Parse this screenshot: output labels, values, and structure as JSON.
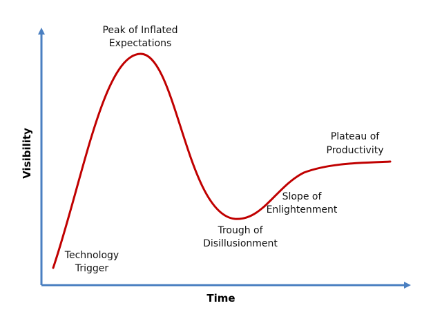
{
  "diagram": {
    "x_axis_label": "Time",
    "y_axis_label": "Visibility",
    "axis_color": "#4a7fc1",
    "curve_color": "#c00000",
    "phases": [
      {
        "name": "technology-trigger",
        "lines": [
          "Technology",
          "Trigger"
        ]
      },
      {
        "name": "peak-of-inflated-expectations",
        "lines": [
          "Peak of Inflated",
          "Expectations"
        ]
      },
      {
        "name": "trough-of-disillusionment",
        "lines": [
          "Trough of",
          "Disillusionment"
        ]
      },
      {
        "name": "slope-of-enlightenment",
        "lines": [
          "Slope of",
          "Enlightenment"
        ]
      },
      {
        "name": "plateau-of-productivity",
        "lines": [
          "Plateau of",
          "Productivity"
        ]
      }
    ]
  }
}
